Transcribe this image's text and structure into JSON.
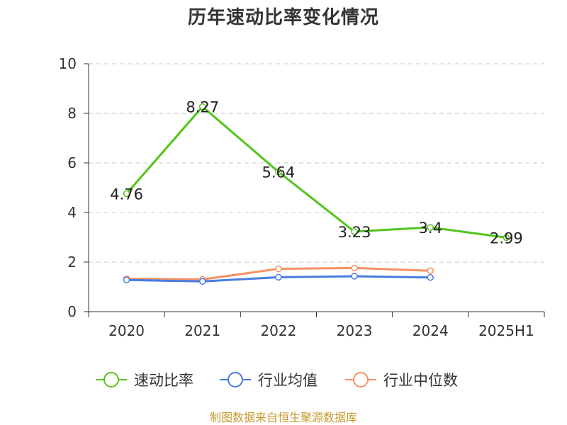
{
  "source_note": "制图数据来自恒生聚源数据库",
  "chart_data": {
    "type": "line",
    "title": "历年速动比率变化情况",
    "categories": [
      "2020",
      "2021",
      "2022",
      "2023",
      "2024",
      "2025H1"
    ],
    "ylim": [
      0,
      10
    ],
    "yticks": [
      0,
      2,
      4,
      6,
      8,
      10
    ],
    "grid": true,
    "legend_position": "bottom",
    "series": [
      {
        "name": "速动比率",
        "color": "#52c41a",
        "values": [
          4.76,
          8.27,
          5.64,
          3.23,
          3.4,
          2.99
        ],
        "labels": [
          "4.76",
          "8.27",
          "5.64",
          "3.23",
          "3.4",
          "2.99"
        ]
      },
      {
        "name": "行业均值",
        "color": "#4a7be0",
        "values": [
          1.28,
          1.22,
          1.39,
          1.43,
          1.38,
          null
        ]
      },
      {
        "name": "行业中位数",
        "color": "#f59162",
        "values": [
          1.33,
          1.3,
          1.73,
          1.76,
          1.65,
          null
        ]
      }
    ]
  }
}
